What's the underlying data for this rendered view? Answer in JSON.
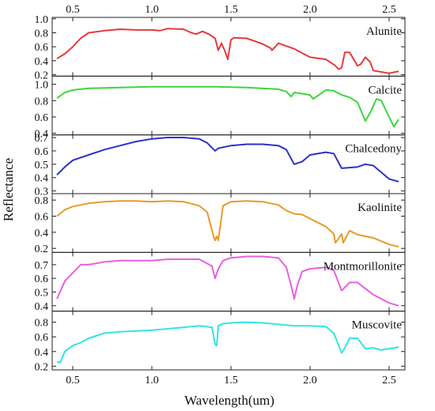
{
  "chart_data": {
    "type": "line",
    "title": "",
    "xlabel": "Wavelength(um)",
    "ylabel": "Reflectance",
    "xlim": [
      0.37,
      2.6
    ],
    "x_ticks": [
      "0.5",
      "1.0",
      "1.5",
      "2.0",
      "2.5"
    ],
    "x_tick_values": [
      0.5,
      1.0,
      1.5,
      2.0,
      2.5
    ],
    "grid": false,
    "panels": [
      {
        "name": "Alunite",
        "color": "#e8383b",
        "ylim": [
          0.18,
          1.02
        ],
        "y_ticks": [
          "0.2",
          "0.4",
          "0.6",
          "0.8",
          "1.0"
        ],
        "y_tick_values": [
          0.2,
          0.4,
          0.6,
          0.8,
          1.0
        ],
        "x": [
          0.4,
          0.45,
          0.5,
          0.55,
          0.6,
          0.7,
          0.8,
          0.9,
          1.0,
          1.05,
          1.1,
          1.2,
          1.25,
          1.28,
          1.32,
          1.36,
          1.4,
          1.42,
          1.44,
          1.46,
          1.48,
          1.5,
          1.52,
          1.6,
          1.7,
          1.75,
          1.76,
          1.8,
          1.9,
          2.0,
          2.1,
          2.16,
          2.18,
          2.2,
          2.22,
          2.25,
          2.3,
          2.32,
          2.35,
          2.38,
          2.4,
          2.45,
          2.5,
          2.56
        ],
        "y": [
          0.43,
          0.5,
          0.6,
          0.72,
          0.8,
          0.83,
          0.85,
          0.84,
          0.84,
          0.83,
          0.86,
          0.85,
          0.8,
          0.78,
          0.82,
          0.78,
          0.72,
          0.55,
          0.65,
          0.55,
          0.42,
          0.7,
          0.73,
          0.72,
          0.64,
          0.58,
          0.55,
          0.65,
          0.57,
          0.45,
          0.42,
          0.33,
          0.28,
          0.3,
          0.52,
          0.52,
          0.33,
          0.35,
          0.45,
          0.38,
          0.26,
          0.24,
          0.22,
          0.25
        ]
      },
      {
        "name": "Calcite",
        "color": "#3bd63b",
        "ylim": [
          0.38,
          1.1
        ],
        "y_ticks": [
          "0.4",
          "0.6",
          "0.8",
          "1.0"
        ],
        "y_tick_values": [
          0.4,
          0.6,
          0.8,
          1.0
        ],
        "x": [
          0.4,
          0.45,
          0.5,
          0.6,
          0.8,
          1.0,
          1.2,
          1.4,
          1.6,
          1.8,
          1.85,
          1.88,
          1.9,
          2.0,
          2.02,
          2.1,
          2.15,
          2.2,
          2.25,
          2.3,
          2.35,
          2.38,
          2.42,
          2.45,
          2.5,
          2.53,
          2.56
        ],
        "y": [
          0.83,
          0.9,
          0.93,
          0.95,
          0.96,
          0.97,
          0.97,
          0.97,
          0.96,
          0.94,
          0.91,
          0.85,
          0.9,
          0.87,
          0.82,
          0.93,
          0.92,
          0.87,
          0.84,
          0.78,
          0.55,
          0.65,
          0.82,
          0.8,
          0.6,
          0.48,
          0.57
        ]
      },
      {
        "name": "Chalcedony",
        "color": "#2b32c8",
        "ylim": [
          0.28,
          0.72
        ],
        "y_ticks": [
          "0.3",
          "0.4",
          "0.5",
          "0.6",
          "0.7"
        ],
        "y_tick_values": [
          0.3,
          0.4,
          0.5,
          0.6,
          0.7
        ],
        "x": [
          0.4,
          0.45,
          0.5,
          0.6,
          0.7,
          0.8,
          0.9,
          1.0,
          1.1,
          1.2,
          1.3,
          1.35,
          1.4,
          1.42,
          1.5,
          1.6,
          1.7,
          1.8,
          1.85,
          1.9,
          1.95,
          2.0,
          2.1,
          2.15,
          2.2,
          2.3,
          2.35,
          2.4,
          2.45,
          2.5,
          2.56
        ],
        "y": [
          0.42,
          0.48,
          0.53,
          0.57,
          0.61,
          0.64,
          0.67,
          0.69,
          0.7,
          0.7,
          0.69,
          0.66,
          0.6,
          0.62,
          0.64,
          0.65,
          0.65,
          0.64,
          0.61,
          0.5,
          0.52,
          0.57,
          0.59,
          0.58,
          0.47,
          0.48,
          0.5,
          0.49,
          0.44,
          0.39,
          0.37
        ]
      },
      {
        "name": "Kaolinite",
        "color": "#e89a28",
        "ylim": [
          0.15,
          0.88
        ],
        "y_ticks": [
          "0.2",
          "0.4",
          "0.6",
          "0.8"
        ],
        "y_tick_values": [
          0.2,
          0.4,
          0.6,
          0.8
        ],
        "x": [
          0.4,
          0.45,
          0.5,
          0.6,
          0.7,
          0.8,
          0.9,
          1.0,
          1.1,
          1.2,
          1.3,
          1.35,
          1.39,
          1.4,
          1.41,
          1.42,
          1.45,
          1.5,
          1.6,
          1.7,
          1.8,
          1.85,
          1.9,
          1.95,
          2.0,
          2.1,
          2.15,
          2.16,
          2.18,
          2.2,
          2.21,
          2.25,
          2.3,
          2.4,
          2.5,
          2.56
        ],
        "y": [
          0.6,
          0.68,
          0.72,
          0.76,
          0.78,
          0.79,
          0.79,
          0.78,
          0.79,
          0.78,
          0.73,
          0.65,
          0.35,
          0.3,
          0.35,
          0.3,
          0.73,
          0.78,
          0.79,
          0.78,
          0.74,
          0.67,
          0.63,
          0.62,
          0.57,
          0.47,
          0.38,
          0.27,
          0.32,
          0.38,
          0.27,
          0.42,
          0.37,
          0.33,
          0.25,
          0.22
        ]
      },
      {
        "name": "Montmorillonite",
        "color": "#e85fe0",
        "ylim": [
          0.36,
          0.79
        ],
        "y_ticks": [
          "0.4",
          "0.5",
          "0.6",
          "0.7"
        ],
        "y_tick_values": [
          0.4,
          0.5,
          0.6,
          0.7
        ],
        "x": [
          0.4,
          0.45,
          0.5,
          0.55,
          0.6,
          0.7,
          0.8,
          0.9,
          1.0,
          1.1,
          1.2,
          1.3,
          1.38,
          1.4,
          1.42,
          1.45,
          1.5,
          1.6,
          1.7,
          1.8,
          1.85,
          1.88,
          1.9,
          1.92,
          1.95,
          2.0,
          2.1,
          2.15,
          2.2,
          2.25,
          2.3,
          2.4,
          2.5,
          2.56
        ],
        "y": [
          0.45,
          0.58,
          0.64,
          0.7,
          0.7,
          0.72,
          0.73,
          0.73,
          0.73,
          0.74,
          0.74,
          0.74,
          0.69,
          0.6,
          0.67,
          0.73,
          0.75,
          0.76,
          0.76,
          0.75,
          0.68,
          0.55,
          0.45,
          0.55,
          0.65,
          0.67,
          0.68,
          0.66,
          0.51,
          0.57,
          0.57,
          0.48,
          0.42,
          0.4
        ]
      },
      {
        "name": "Muscovite",
        "color": "#35e3e3",
        "ylim": [
          0.15,
          0.95
        ],
        "y_ticks": [
          "0.2",
          "0.4",
          "0.6",
          "0.8"
        ],
        "y_tick_values": [
          0.2,
          0.4,
          0.6,
          0.8
        ],
        "x": [
          0.4,
          0.42,
          0.45,
          0.5,
          0.55,
          0.6,
          0.7,
          0.8,
          0.9,
          1.0,
          1.1,
          1.2,
          1.3,
          1.38,
          1.4,
          1.41,
          1.42,
          1.45,
          1.5,
          1.6,
          1.7,
          1.8,
          1.9,
          2.0,
          2.1,
          2.15,
          2.2,
          2.22,
          2.25,
          2.3,
          2.35,
          2.4,
          2.45,
          2.5,
          2.56
        ],
        "y": [
          0.26,
          0.25,
          0.4,
          0.48,
          0.52,
          0.58,
          0.65,
          0.67,
          0.68,
          0.69,
          0.71,
          0.73,
          0.75,
          0.73,
          0.5,
          0.48,
          0.75,
          0.78,
          0.79,
          0.8,
          0.79,
          0.77,
          0.75,
          0.75,
          0.74,
          0.65,
          0.38,
          0.45,
          0.58,
          0.58,
          0.44,
          0.45,
          0.42,
          0.44,
          0.46
        ]
      }
    ]
  }
}
